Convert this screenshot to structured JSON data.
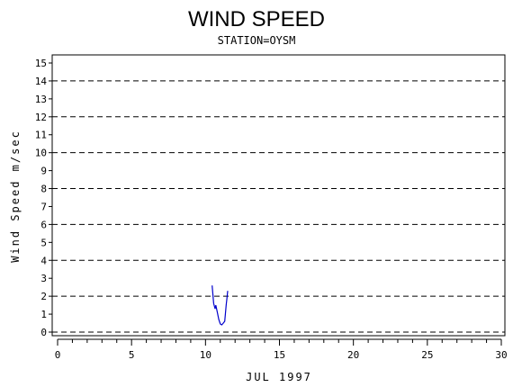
{
  "chart_data": {
    "type": "line",
    "title": "WIND SPEED",
    "subtitle": "STATION=OYSM",
    "xlabel": "JUL 1997",
    "ylabel": "Wind Speed m/sec",
    "xlim": [
      0,
      30
    ],
    "ylim": [
      0,
      15.5
    ],
    "x_ticks": [
      0,
      5,
      10,
      15,
      20,
      25,
      30
    ],
    "y_ticks": [
      0,
      1,
      2,
      3,
      4,
      5,
      6,
      7,
      8,
      9,
      10,
      11,
      12,
      13,
      14,
      15
    ],
    "grid_lines_y": [
      0,
      2,
      4,
      6,
      8,
      10,
      12,
      14
    ],
    "grid": true,
    "series_color": "#0000cc",
    "series": [
      {
        "x": [
          10.45,
          10.55,
          10.65,
          10.7,
          10.8,
          10.9,
          11.0,
          11.1,
          11.2,
          11.3,
          11.4,
          11.45,
          11.5
        ],
        "values": [
          2.6,
          1.6,
          1.3,
          1.5,
          1.1,
          0.7,
          0.45,
          0.4,
          0.5,
          0.6,
          1.5,
          1.9,
          2.3
        ]
      }
    ]
  }
}
